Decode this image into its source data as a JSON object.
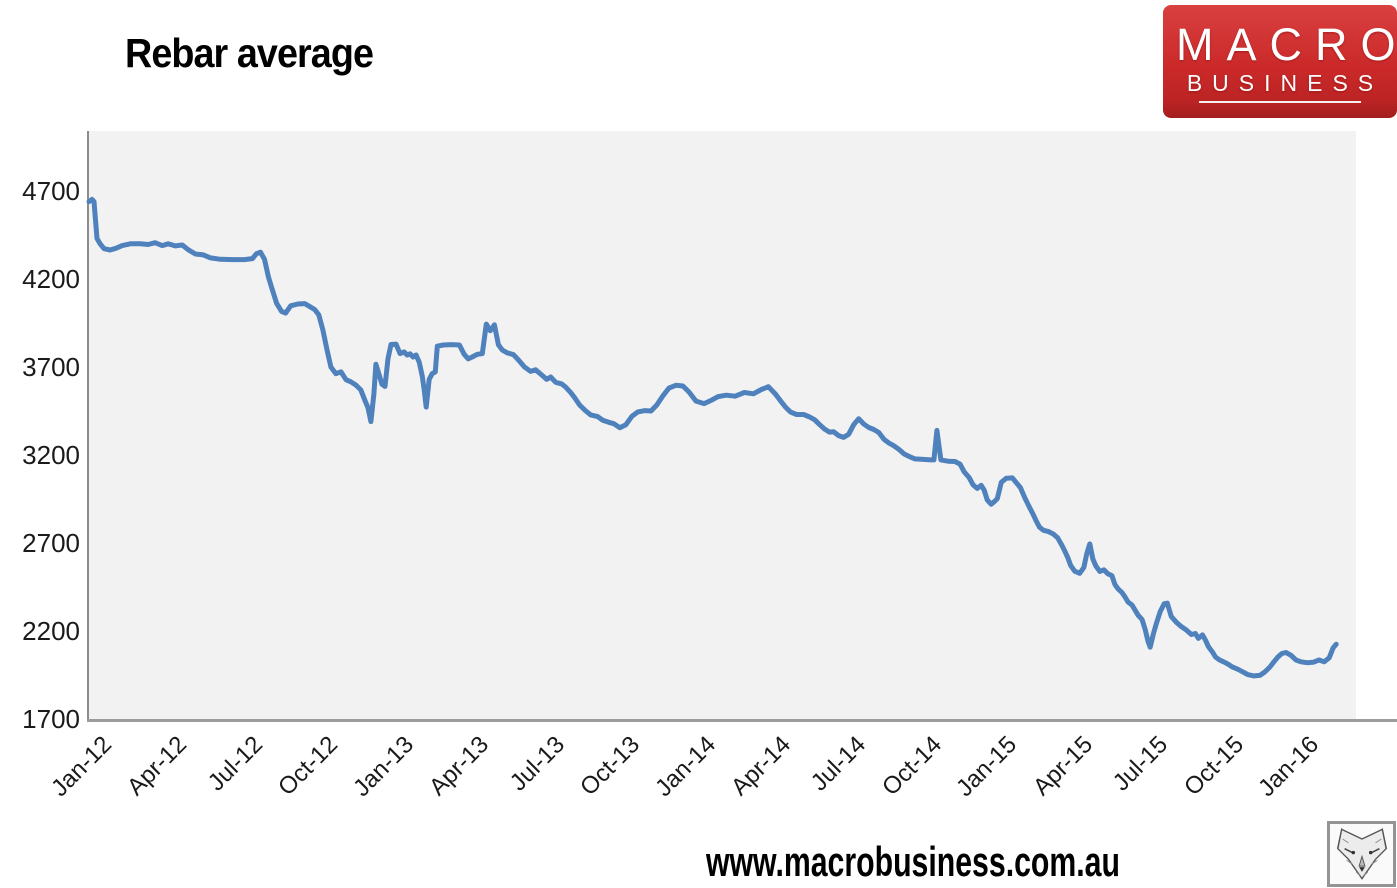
{
  "header": {
    "title": "Rebar average"
  },
  "logo": {
    "line1": "MACRO",
    "line2": "BUSINESS",
    "bg_color_top": "#d94040",
    "bg_color_bottom": "#a31d1d",
    "text_color": "#ffffff"
  },
  "footer": {
    "url": "www.macrobusiness.com.au",
    "badge_icon": "wolf-sketch-icon"
  },
  "chart_data": {
    "type": "line",
    "title": "Rebar average",
    "xlabel": "",
    "ylabel": "",
    "legend": "none",
    "grid": false,
    "plot_bg": "#f2f2f2",
    "axis_color": "#9c9c9c",
    "tick_label_color": "#1a1a1a",
    "y_ticks": [
      1700,
      2200,
      2700,
      3200,
      3700,
      4200,
      4700
    ],
    "ylim": [
      1700,
      5041
    ],
    "x_tick_labels": [
      "Jan-12",
      "Apr-12",
      "Jul-12",
      "Oct-12",
      "Jan-13",
      "Apr-13",
      "Jul-13",
      "Oct-13",
      "Jan-14",
      "Apr-14",
      "Jul-14",
      "Oct-14",
      "Jan-15",
      "Apr-15",
      "Jul-15",
      "Oct-15",
      "Jan-16"
    ],
    "x_tick_months": [
      0,
      3,
      6,
      9,
      12,
      15,
      18,
      21,
      24,
      27,
      30,
      33,
      36,
      39,
      42,
      45,
      48
    ],
    "x_unit": "months since Jan-2012",
    "xlim": [
      0,
      50.4
    ],
    "series": [
      {
        "name": "Rebar average",
        "color": "#4f81bd",
        "stroke_width": 5,
        "points": [
          [
            0.0,
            4640
          ],
          [
            0.12,
            4652
          ],
          [
            0.2,
            4640
          ],
          [
            0.32,
            4430
          ],
          [
            0.44,
            4400
          ],
          [
            0.6,
            4372
          ],
          [
            0.84,
            4365
          ],
          [
            1.08,
            4375
          ],
          [
            1.32,
            4390
          ],
          [
            1.64,
            4400
          ],
          [
            2.04,
            4400
          ],
          [
            2.35,
            4396
          ],
          [
            2.63,
            4406
          ],
          [
            2.91,
            4390
          ],
          [
            3.15,
            4400
          ],
          [
            3.43,
            4388
          ],
          [
            3.71,
            4393
          ],
          [
            3.95,
            4366
          ],
          [
            4.23,
            4342
          ],
          [
            4.55,
            4337
          ],
          [
            4.83,
            4320
          ],
          [
            5.23,
            4312
          ],
          [
            5.71,
            4310
          ],
          [
            6.18,
            4310
          ],
          [
            6.5,
            4316
          ],
          [
            6.66,
            4344
          ],
          [
            6.82,
            4352
          ],
          [
            6.98,
            4312
          ],
          [
            7.14,
            4210
          ],
          [
            7.26,
            4152
          ],
          [
            7.46,
            4062
          ],
          [
            7.66,
            4016
          ],
          [
            7.82,
            4006
          ],
          [
            8.02,
            4048
          ],
          [
            8.3,
            4058
          ],
          [
            8.58,
            4060
          ],
          [
            8.82,
            4040
          ],
          [
            8.98,
            4026
          ],
          [
            9.14,
            3996
          ],
          [
            9.3,
            3910
          ],
          [
            9.46,
            3800
          ],
          [
            9.62,
            3700
          ],
          [
            9.82,
            3662
          ],
          [
            10.02,
            3672
          ],
          [
            10.22,
            3628
          ],
          [
            10.41,
            3616
          ],
          [
            10.61,
            3598
          ],
          [
            10.81,
            3570
          ],
          [
            10.97,
            3512
          ],
          [
            11.09,
            3470
          ],
          [
            11.21,
            3390
          ],
          [
            11.33,
            3548
          ],
          [
            11.41,
            3716
          ],
          [
            11.53,
            3660
          ],
          [
            11.65,
            3602
          ],
          [
            11.77,
            3590
          ],
          [
            11.89,
            3748
          ],
          [
            12.01,
            3828
          ],
          [
            12.21,
            3830
          ],
          [
            12.37,
            3776
          ],
          [
            12.53,
            3786
          ],
          [
            12.65,
            3768
          ],
          [
            12.77,
            3775
          ],
          [
            12.89,
            3757
          ],
          [
            13.01,
            3768
          ],
          [
            13.13,
            3728
          ],
          [
            13.25,
            3650
          ],
          [
            13.33,
            3570
          ],
          [
            13.41,
            3472
          ],
          [
            13.53,
            3630
          ],
          [
            13.65,
            3662
          ],
          [
            13.77,
            3672
          ],
          [
            13.85,
            3818
          ],
          [
            14.09,
            3825
          ],
          [
            14.41,
            3827
          ],
          [
            14.73,
            3825
          ],
          [
            14.92,
            3772
          ],
          [
            15.08,
            3746
          ],
          [
            15.24,
            3757
          ],
          [
            15.44,
            3772
          ],
          [
            15.64,
            3776
          ],
          [
            15.8,
            3944
          ],
          [
            15.96,
            3906
          ],
          [
            16.12,
            3940
          ],
          [
            16.28,
            3826
          ],
          [
            16.44,
            3796
          ],
          [
            16.64,
            3780
          ],
          [
            16.88,
            3770
          ],
          [
            17.08,
            3740
          ],
          [
            17.32,
            3700
          ],
          [
            17.56,
            3675
          ],
          [
            17.76,
            3684
          ],
          [
            18.0,
            3655
          ],
          [
            18.2,
            3630
          ],
          [
            18.36,
            3643
          ],
          [
            18.56,
            3613
          ],
          [
            18.8,
            3604
          ],
          [
            18.95,
            3587
          ],
          [
            19.15,
            3556
          ],
          [
            19.31,
            3526
          ],
          [
            19.51,
            3484
          ],
          [
            19.71,
            3456
          ],
          [
            19.95,
            3428
          ],
          [
            20.23,
            3418
          ],
          [
            20.43,
            3398
          ],
          [
            20.67,
            3386
          ],
          [
            20.87,
            3378
          ],
          [
            21.11,
            3355
          ],
          [
            21.35,
            3372
          ],
          [
            21.59,
            3420
          ],
          [
            21.83,
            3445
          ],
          [
            22.11,
            3452
          ],
          [
            22.35,
            3450
          ],
          [
            22.58,
            3484
          ],
          [
            22.82,
            3535
          ],
          [
            23.06,
            3580
          ],
          [
            23.34,
            3596
          ],
          [
            23.62,
            3592
          ],
          [
            23.86,
            3558
          ],
          [
            24.14,
            3506
          ],
          [
            24.46,
            3492
          ],
          [
            24.74,
            3510
          ],
          [
            25.02,
            3532
          ],
          [
            25.34,
            3540
          ],
          [
            25.7,
            3534
          ],
          [
            26.06,
            3555
          ],
          [
            26.42,
            3548
          ],
          [
            26.74,
            3572
          ],
          [
            27.02,
            3588
          ],
          [
            27.3,
            3546
          ],
          [
            27.5,
            3508
          ],
          [
            27.7,
            3472
          ],
          [
            27.9,
            3444
          ],
          [
            28.14,
            3430
          ],
          [
            28.42,
            3430
          ],
          [
            28.66,
            3416
          ],
          [
            28.86,
            3400
          ],
          [
            29.06,
            3372
          ],
          [
            29.25,
            3348
          ],
          [
            29.45,
            3330
          ],
          [
            29.61,
            3332
          ],
          [
            29.81,
            3310
          ],
          [
            30.01,
            3300
          ],
          [
            30.21,
            3318
          ],
          [
            30.41,
            3372
          ],
          [
            30.61,
            3406
          ],
          [
            30.81,
            3376
          ],
          [
            31.01,
            3356
          ],
          [
            31.21,
            3345
          ],
          [
            31.41,
            3328
          ],
          [
            31.61,
            3290
          ],
          [
            31.81,
            3268
          ],
          [
            32.01,
            3252
          ],
          [
            32.21,
            3232
          ],
          [
            32.41,
            3206
          ],
          [
            32.61,
            3192
          ],
          [
            32.85,
            3178
          ],
          [
            33.17,
            3175
          ],
          [
            33.48,
            3172
          ],
          [
            33.6,
            3172
          ],
          [
            33.72,
            3340
          ],
          [
            33.88,
            3172
          ],
          [
            34.16,
            3165
          ],
          [
            34.44,
            3163
          ],
          [
            34.64,
            3148
          ],
          [
            34.8,
            3105
          ],
          [
            35.0,
            3072
          ],
          [
            35.16,
            3030
          ],
          [
            35.32,
            3010
          ],
          [
            35.48,
            3028
          ],
          [
            35.6,
            3000
          ],
          [
            35.72,
            2945
          ],
          [
            35.88,
            2920
          ],
          [
            36.0,
            2935
          ],
          [
            36.12,
            2952
          ],
          [
            36.28,
            3045
          ],
          [
            36.48,
            3068
          ],
          [
            36.72,
            3070
          ],
          [
            36.88,
            3042
          ],
          [
            37.04,
            3015
          ],
          [
            37.2,
            2962
          ],
          [
            37.36,
            2915
          ],
          [
            37.52,
            2870
          ],
          [
            37.68,
            2822
          ],
          [
            37.8,
            2790
          ],
          [
            37.96,
            2772
          ],
          [
            38.16,
            2765
          ],
          [
            38.36,
            2750
          ],
          [
            38.52,
            2730
          ],
          [
            38.68,
            2690
          ],
          [
            38.8,
            2655
          ],
          [
            38.92,
            2618
          ],
          [
            39.04,
            2572
          ],
          [
            39.2,
            2540
          ],
          [
            39.4,
            2528
          ],
          [
            39.56,
            2560
          ],
          [
            39.68,
            2640
          ],
          [
            39.8,
            2695
          ],
          [
            39.92,
            2610
          ],
          [
            40.04,
            2570
          ],
          [
            40.2,
            2538
          ],
          [
            40.36,
            2548
          ],
          [
            40.52,
            2525
          ],
          [
            40.68,
            2515
          ],
          [
            40.8,
            2465
          ],
          [
            40.92,
            2440
          ],
          [
            41.08,
            2418
          ],
          [
            41.2,
            2394
          ],
          [
            41.32,
            2365
          ],
          [
            41.48,
            2348
          ],
          [
            41.6,
            2318
          ],
          [
            41.72,
            2290
          ],
          [
            41.88,
            2265
          ],
          [
            42.0,
            2210
          ],
          [
            42.12,
            2140
          ],
          [
            42.2,
            2108
          ],
          [
            42.32,
            2180
          ],
          [
            42.44,
            2240
          ],
          [
            42.6,
            2310
          ],
          [
            42.76,
            2355
          ],
          [
            42.88,
            2358
          ],
          [
            43.04,
            2282
          ],
          [
            43.24,
            2250
          ],
          [
            43.44,
            2225
          ],
          [
            43.64,
            2205
          ],
          [
            43.84,
            2180
          ],
          [
            44.0,
            2186
          ],
          [
            44.12,
            2158
          ],
          [
            44.28,
            2178
          ],
          [
            44.4,
            2148
          ],
          [
            44.52,
            2110
          ],
          [
            44.68,
            2080
          ],
          [
            44.8,
            2052
          ],
          [
            44.96,
            2035
          ],
          [
            45.12,
            2025
          ],
          [
            45.28,
            2013
          ],
          [
            45.48,
            1995
          ],
          [
            45.68,
            1983
          ],
          [
            45.88,
            1968
          ],
          [
            46.08,
            1952
          ],
          [
            46.32,
            1945
          ],
          [
            46.56,
            1948
          ],
          [
            46.76,
            1967
          ],
          [
            46.96,
            1995
          ],
          [
            47.12,
            2025
          ],
          [
            47.28,
            2052
          ],
          [
            47.44,
            2072
          ],
          [
            47.6,
            2078
          ],
          [
            47.8,
            2062
          ],
          [
            48.0,
            2035
          ],
          [
            48.2,
            2025
          ],
          [
            48.44,
            2020
          ],
          [
            48.68,
            2022
          ],
          [
            48.92,
            2035
          ],
          [
            49.12,
            2025
          ],
          [
            49.32,
            2048
          ],
          [
            49.48,
            2105
          ],
          [
            49.6,
            2125
          ]
        ]
      }
    ]
  }
}
